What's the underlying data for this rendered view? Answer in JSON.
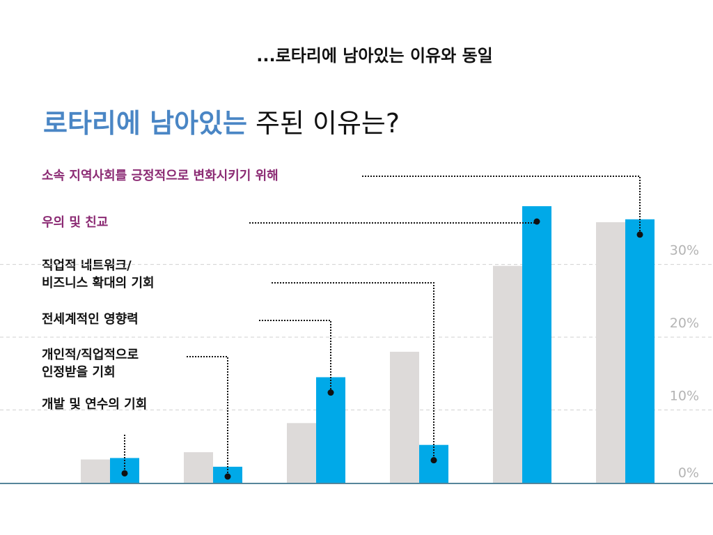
{
  "header": {
    "subtitle": "...로타리에 남아있는 이유와 동일",
    "title_highlight": "로타리에 남아있는",
    "title_rest": " 주된 이유는?"
  },
  "labels": [
    {
      "lines": [
        "소속 지역사회를 긍정적으로 변화시키기 위해"
      ]
    },
    {
      "lines": [
        "우의 및 친교"
      ]
    },
    {
      "lines": [
        "직업적 네트워크/",
        "비즈니스 확대의 기회"
      ]
    },
    {
      "lines": [
        "전세계적인 영향력"
      ]
    },
    {
      "lines": [
        "개인적/직업적으로",
        "인정받을 기회"
      ]
    },
    {
      "lines": [
        "개발 및 연수의 기회"
      ]
    }
  ],
  "chart_data": {
    "type": "bar",
    "categories": [
      "개발 및 연수의 기회",
      "개인적/직업적으로 인정받을 기회",
      "전세계적인 영향력",
      "직업적 네트워크/비즈니스 확대의 기회",
      "우의 및 친교",
      "소속 지역사회를 긍정적으로 변화시키기 위해"
    ],
    "series": [
      {
        "color": "#dddad9",
        "values": [
          3.2,
          4.2,
          8.2,
          18.0,
          29.8,
          35.8
        ]
      },
      {
        "color": "#00a9e8",
        "values": [
          3.4,
          2.2,
          14.5,
          5.2,
          38.0,
          36.2
        ]
      }
    ],
    "y_ticks": [
      "0%",
      "10%",
      "20%",
      "30%"
    ],
    "y_tick_values": [
      0,
      10,
      20,
      30
    ],
    "ylim": [
      0,
      38
    ],
    "grid": true
  },
  "colors": {
    "accent": "#00a9e8",
    "reference": "#dddad9",
    "title_blue": "#4a86c5",
    "label_purple": "#8b2a73",
    "baseline": "#1f5d78"
  }
}
